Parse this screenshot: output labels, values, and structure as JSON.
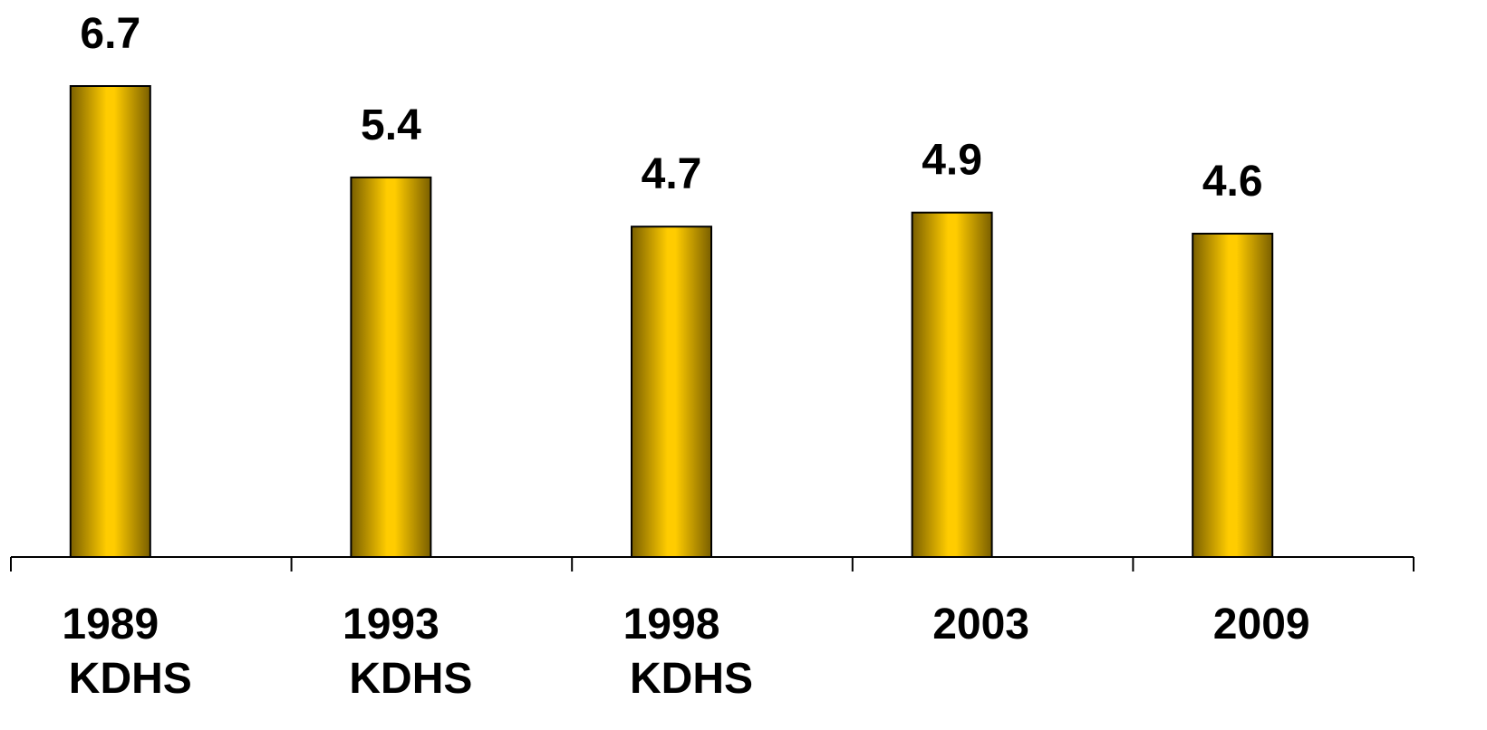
{
  "chart_data": {
    "type": "bar",
    "categories": [
      [
        "1989",
        "KDHS"
      ],
      [
        "1993",
        "KDHS"
      ],
      [
        "1998",
        "KDHS"
      ],
      [
        "2003"
      ],
      [
        "2009"
      ]
    ],
    "values": [
      6.7,
      5.4,
      4.7,
      4.9,
      4.6
    ],
    "data_labels": [
      "6.7",
      "5.4",
      "4.7",
      "4.9",
      "4.6"
    ],
    "title": "",
    "xlabel": "",
    "ylabel": "",
    "ylim": [
      0,
      8
    ],
    "grid": false,
    "legend": "none",
    "colors": {
      "bar_center": "#FFCC00",
      "bar_edge": "#7A5F00",
      "bar_outline": "#000000",
      "axis": "#000000"
    }
  }
}
